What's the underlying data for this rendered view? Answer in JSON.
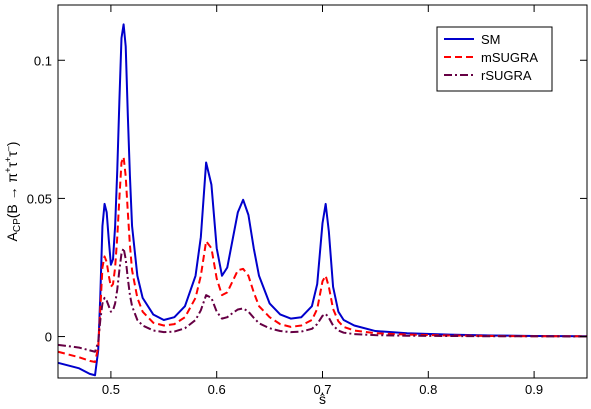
{
  "chart_data": {
    "type": "line",
    "xlabel": "ŝ",
    "ylabel": "A_CP(B → π⁺τ⁺τ⁻)",
    "ylabel_parts": {
      "main": "A",
      "sub": "CP",
      "open": "(B ",
      "arrow": "→",
      "pi": " π",
      "sup1": "+",
      "tau1": "τ",
      "sup2": "+",
      "tau2": "τ",
      "sup3": "–",
      "close": ")"
    },
    "xlim": [
      0.45,
      0.95
    ],
    "ylim": [
      -0.015,
      0.12
    ],
    "xticks": [
      0.5,
      0.6,
      0.7,
      0.8,
      0.9
    ],
    "xtick_labels": [
      "0.5",
      "0.6",
      "0.7",
      "0.8",
      "0.9"
    ],
    "yticks": [
      0,
      0.05,
      0.1
    ],
    "ytick_labels": [
      "0",
      "0.05",
      "0.1"
    ],
    "grid": false,
    "legend_position": "top-right",
    "series": [
      {
        "name": "SM",
        "color": "#0000cc",
        "dash": "solid",
        "x": [
          0.45,
          0.47,
          0.48,
          0.485,
          0.488,
          0.49,
          0.492,
          0.494,
          0.496,
          0.498,
          0.5,
          0.502,
          0.504,
          0.506,
          0.508,
          0.51,
          0.512,
          0.514,
          0.516,
          0.518,
          0.52,
          0.525,
          0.53,
          0.54,
          0.55,
          0.56,
          0.57,
          0.58,
          0.585,
          0.59,
          0.595,
          0.6,
          0.605,
          0.61,
          0.615,
          0.62,
          0.625,
          0.63,
          0.635,
          0.64,
          0.65,
          0.66,
          0.67,
          0.68,
          0.69,
          0.695,
          0.7,
          0.703,
          0.706,
          0.71,
          0.715,
          0.72,
          0.73,
          0.75,
          0.78,
          0.82,
          0.86,
          0.9,
          0.95
        ],
        "y": [
          -0.0095,
          -0.0115,
          -0.0135,
          -0.014,
          -0.005,
          0.015,
          0.04,
          0.048,
          0.045,
          0.035,
          0.026,
          0.028,
          0.04,
          0.06,
          0.085,
          0.108,
          0.113,
          0.105,
          0.08,
          0.058,
          0.04,
          0.022,
          0.014,
          0.008,
          0.006,
          0.007,
          0.011,
          0.022,
          0.036,
          0.063,
          0.055,
          0.032,
          0.022,
          0.025,
          0.035,
          0.045,
          0.0495,
          0.044,
          0.032,
          0.022,
          0.012,
          0.008,
          0.0065,
          0.007,
          0.011,
          0.019,
          0.041,
          0.048,
          0.038,
          0.018,
          0.009,
          0.006,
          0.004,
          0.002,
          0.0012,
          0.0007,
          0.0004,
          0.0002,
          0.0001
        ]
      },
      {
        "name": "mSUGRA",
        "color": "#ff0000",
        "dash": "dashed",
        "x": [
          0.45,
          0.47,
          0.48,
          0.485,
          0.488,
          0.49,
          0.492,
          0.494,
          0.496,
          0.498,
          0.5,
          0.502,
          0.504,
          0.506,
          0.508,
          0.51,
          0.512,
          0.514,
          0.516,
          0.518,
          0.52,
          0.525,
          0.53,
          0.54,
          0.55,
          0.56,
          0.57,
          0.58,
          0.585,
          0.59,
          0.595,
          0.6,
          0.605,
          0.61,
          0.615,
          0.62,
          0.625,
          0.63,
          0.635,
          0.64,
          0.65,
          0.66,
          0.67,
          0.68,
          0.69,
          0.695,
          0.7,
          0.703,
          0.706,
          0.71,
          0.715,
          0.72,
          0.73,
          0.75,
          0.78,
          0.82,
          0.86,
          0.9,
          0.95
        ],
        "y": [
          -0.0055,
          -0.0075,
          -0.0088,
          -0.0092,
          -0.004,
          0.01,
          0.025,
          0.029,
          0.027,
          0.022,
          0.018,
          0.019,
          0.025,
          0.036,
          0.05,
          0.063,
          0.065,
          0.058,
          0.045,
          0.033,
          0.024,
          0.014,
          0.009,
          0.005,
          0.004,
          0.0045,
          0.007,
          0.014,
          0.022,
          0.0345,
          0.032,
          0.021,
          0.015,
          0.016,
          0.02,
          0.024,
          0.0245,
          0.022,
          0.016,
          0.011,
          0.007,
          0.0045,
          0.0035,
          0.004,
          0.006,
          0.01,
          0.02,
          0.022,
          0.018,
          0.01,
          0.0055,
          0.0035,
          0.0022,
          0.0012,
          0.0007,
          0.0004,
          0.0002,
          0.0001,
          0.0001
        ]
      },
      {
        "name": "rSUGRA",
        "color": "#660044",
        "dash": "dashdot",
        "x": [
          0.45,
          0.47,
          0.48,
          0.485,
          0.488,
          0.49,
          0.492,
          0.494,
          0.496,
          0.498,
          0.5,
          0.502,
          0.504,
          0.506,
          0.508,
          0.51,
          0.512,
          0.514,
          0.516,
          0.518,
          0.52,
          0.525,
          0.53,
          0.54,
          0.55,
          0.56,
          0.57,
          0.58,
          0.585,
          0.59,
          0.595,
          0.6,
          0.605,
          0.61,
          0.615,
          0.62,
          0.625,
          0.63,
          0.635,
          0.64,
          0.65,
          0.66,
          0.67,
          0.68,
          0.69,
          0.695,
          0.7,
          0.703,
          0.706,
          0.71,
          0.715,
          0.72,
          0.73,
          0.75,
          0.78,
          0.82,
          0.86,
          0.9,
          0.95
        ],
        "y": [
          -0.003,
          -0.004,
          -0.005,
          -0.0055,
          -0.002,
          0.006,
          0.012,
          0.014,
          0.013,
          0.011,
          0.009,
          0.0095,
          0.012,
          0.017,
          0.024,
          0.03,
          0.032,
          0.028,
          0.021,
          0.015,
          0.011,
          0.006,
          0.004,
          0.0022,
          0.0016,
          0.0018,
          0.003,
          0.006,
          0.0095,
          0.015,
          0.014,
          0.009,
          0.0065,
          0.007,
          0.0085,
          0.0098,
          0.0102,
          0.009,
          0.0068,
          0.0048,
          0.003,
          0.002,
          0.0016,
          0.0018,
          0.0028,
          0.0045,
          0.0075,
          0.0082,
          0.0068,
          0.004,
          0.0022,
          0.0014,
          0.0009,
          0.0005,
          0.0003,
          0.0002,
          0.0001,
          0.0001,
          0
        ]
      }
    ]
  }
}
